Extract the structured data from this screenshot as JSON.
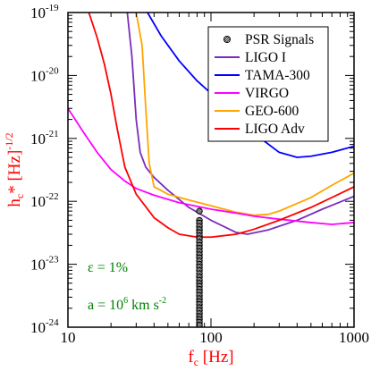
{
  "chart_data": {
    "type": "line",
    "xlabel": {
      "main": "f",
      "sub": "c",
      "rest": " [Hz]"
    },
    "ylabel": {
      "main": "h",
      "sub": "c",
      "mid": "* [Hz]",
      "sup": "-1/2"
    },
    "xscale": "log",
    "yscale": "log",
    "xlim": [
      10,
      1000
    ],
    "ylim": [
      1e-24,
      1e-19
    ],
    "x_ticks": [
      {
        "value": 10,
        "label": "10"
      },
      {
        "value": 100,
        "label": "100"
      },
      {
        "value": 1000,
        "label": "1000"
      }
    ],
    "y_ticks": [
      {
        "value": 1e-19,
        "base": "10",
        "exp": "-19"
      },
      {
        "value": 1e-20,
        "base": "10",
        "exp": "-20"
      },
      {
        "value": 1e-21,
        "base": "10",
        "exp": "-21"
      },
      {
        "value": 1e-22,
        "base": "10",
        "exp": "-22"
      },
      {
        "value": 1e-23,
        "base": "10",
        "exp": "-23"
      },
      {
        "value": 1e-24,
        "base": "10",
        "exp": "-24"
      }
    ],
    "legend_position": "top-right",
    "legend": [
      {
        "name": "PSR Signals",
        "color": "#000000",
        "marker": "hatched-circle"
      },
      {
        "name": "LIGO I",
        "color": "#7b2cbf"
      },
      {
        "name": "TAMA-300",
        "color": "#0000ff"
      },
      {
        "name": "VIRGO",
        "color": "#ff00ff"
      },
      {
        "name": "GEO-600",
        "color": "#ffa500"
      },
      {
        "name": "LIGO Adv",
        "color": "#ff0000"
      }
    ],
    "series": [
      {
        "name": "TAMA-300",
        "color": "#0000ff",
        "points": [
          [
            36,
            1e-19
          ],
          [
            45,
            4.2e-20
          ],
          [
            60,
            1.7e-20
          ],
          [
            80,
            8.2e-21
          ],
          [
            100,
            5.2e-21
          ],
          [
            150,
            2.3e-21
          ],
          [
            200,
            1.2e-21
          ],
          [
            300,
            6e-22
          ],
          [
            400,
            5e-22
          ],
          [
            500,
            5.2e-22
          ],
          [
            700,
            6e-22
          ],
          [
            1000,
            7.5e-22
          ]
        ]
      },
      {
        "name": "LIGO I",
        "color": "#7b2cbf",
        "points": [
          [
            26,
            1e-19
          ],
          [
            28,
            2e-20
          ],
          [
            30,
            2e-21
          ],
          [
            32,
            6e-22
          ],
          [
            35,
            3.5e-22
          ],
          [
            40,
            2.4e-22
          ],
          [
            50,
            1.5e-22
          ],
          [
            70,
            8e-23
          ],
          [
            100,
            5e-23
          ],
          [
            150,
            3.2e-23
          ],
          [
            180,
            3e-23
          ],
          [
            250,
            3.5e-23
          ],
          [
            400,
            5e-23
          ],
          [
            600,
            7.5e-23
          ],
          [
            1000,
            1.2e-22
          ]
        ]
      },
      {
        "name": "GEO-600",
        "color": "#ffa500",
        "points": [
          [
            30,
            1e-19
          ],
          [
            33,
            3e-20
          ],
          [
            35,
            3e-21
          ],
          [
            37,
            4e-22
          ],
          [
            40,
            1.7e-22
          ],
          [
            50,
            1.3e-22
          ],
          [
            70,
            1.05e-22
          ],
          [
            100,
            8.5e-23
          ],
          [
            150,
            6.7e-23
          ],
          [
            200,
            6e-23
          ],
          [
            250,
            6.2e-23
          ],
          [
            300,
            7e-23
          ],
          [
            500,
            1.15e-22
          ],
          [
            700,
            1.8e-22
          ],
          [
            1000,
            2.8e-22
          ]
        ]
      },
      {
        "name": "VIRGO",
        "color": "#ff00ff",
        "points": [
          [
            10,
            3e-21
          ],
          [
            13,
            1.2e-21
          ],
          [
            16,
            6e-22
          ],
          [
            20,
            3.2e-22
          ],
          [
            25,
            2.1e-22
          ],
          [
            30,
            1.6e-22
          ],
          [
            40,
            1.25e-22
          ],
          [
            60,
            9.5e-23
          ],
          [
            100,
            7.5e-23
          ],
          [
            150,
            6.5e-23
          ],
          [
            200,
            5.8e-23
          ],
          [
            300,
            5.2e-23
          ],
          [
            500,
            4.6e-23
          ],
          [
            700,
            4.3e-23
          ],
          [
            1000,
            4.6e-23
          ]
        ]
      },
      {
        "name": "LIGO Adv",
        "color": "#ff0000",
        "points": [
          [
            14,
            1e-19
          ],
          [
            16,
            4e-20
          ],
          [
            18,
            1.5e-20
          ],
          [
            20,
            5e-21
          ],
          [
            22,
            1.5e-21
          ],
          [
            25,
            3.5e-22
          ],
          [
            30,
            1.3e-22
          ],
          [
            40,
            5.5e-23
          ],
          [
            50,
            3.8e-23
          ],
          [
            60,
            3e-23
          ],
          [
            80,
            2.7e-23
          ],
          [
            100,
            2.7e-23
          ],
          [
            150,
            3e-23
          ],
          [
            200,
            3.6e-23
          ],
          [
            300,
            5e-23
          ],
          [
            500,
            8e-23
          ],
          [
            700,
            1.15e-22
          ],
          [
            1000,
            1.7e-22
          ]
        ]
      }
    ],
    "psr_signals": {
      "name": "PSR Signals",
      "x": 83,
      "y": [
        7e-23,
        5e-23,
        4.5e-23,
        4e-23,
        3.55e-23,
        3.2e-23,
        2.85e-23,
        2.55e-23,
        2.25e-23,
        2e-23,
        1.8e-23,
        1.6e-23,
        1.42e-23,
        1.27e-23,
        1.13e-23,
        1e-23,
        9e-24,
        8e-24,
        7.1e-24,
        6.3e-24,
        5.6e-24,
        5e-24,
        4.5e-24,
        4e-24,
        3.6e-24,
        3.2e-24,
        2.85e-24,
        2.55e-24,
        2.3e-24,
        2.05e-24,
        1.85e-24,
        1.65e-24,
        1.48e-24,
        1.33e-24,
        1.2e-24,
        1.08e-24
      ]
    },
    "annotations": [
      {
        "parts": [
          {
            "t": "ε = 1%"
          }
        ]
      },
      {
        "parts": [
          {
            "t": "a = 10"
          },
          {
            "t": "6",
            "sup": true
          },
          {
            "t": " km s"
          },
          {
            "t": "-2",
            "sup": true
          }
        ]
      }
    ]
  }
}
